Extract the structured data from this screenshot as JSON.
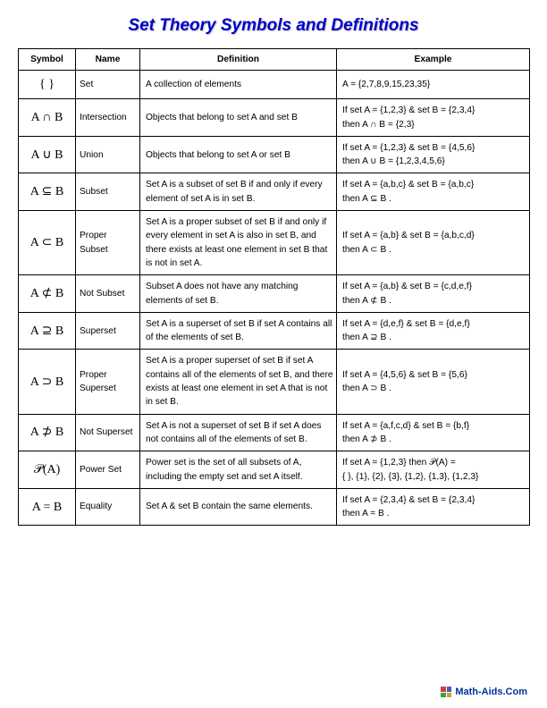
{
  "title": "Set Theory Symbols and Definitions",
  "columns": [
    "Symbol",
    "Name",
    "Definition",
    "Example"
  ],
  "rows": [
    {
      "symbol": "{ }",
      "name": "Set",
      "definition": "A collection of elements",
      "example": "A = {2,7,8,9,15,23,35}"
    },
    {
      "symbol": "A ∩ B",
      "name": "Intersection",
      "definition": "Objects that belong to set A and set B",
      "example": "If set A = {1,2,3}  & set B = {2,3,4}\nthen A ∩ B = {2,3}"
    },
    {
      "symbol": "A ∪ B",
      "name": "Union",
      "definition": "Objects that belong to set A or set B",
      "example": "If set A = {1,2,3}  & set B = {4,5,6}\nthen A ∪ B = {1,2,3,4,5,6}"
    },
    {
      "symbol": "A ⊆ B",
      "name": "Subset",
      "definition": "Set A is a subset of set B if and only if every element of set A is in set B.",
      "example": "If set A = {a,b,c}  & set B = {a,b,c}\nthen A ⊆ B ."
    },
    {
      "symbol": "A ⊂ B",
      "name": "Proper Subset",
      "definition": "Set A is a proper subset of set B if and only if every element in set A is also in set B, and there exists at least one element in set B that is not in set A.",
      "example": "If set A = {a,b}  & set B = {a,b,c,d}\nthen A ⊂ B ."
    },
    {
      "symbol": "A ⊄ B",
      "name": "Not Subset",
      "definition": "Subset A does not have any matching elements of set B.",
      "example": "If set A = {a,b}  & set B = {c,d,e,f}\nthen A ⊄ B ."
    },
    {
      "symbol": "A ⊇ B",
      "name": "Superset",
      "definition": "Set A is a superset of set B if set A contains all of the elements of set B.",
      "example": "If set A = {d,e,f}  & set B = {d,e,f}\nthen A ⊇ B ."
    },
    {
      "symbol": "A ⊃ B",
      "name": "Proper Superset",
      "definition": "Set A is a proper superset of set B if set A contains all of the elements of set B, and there exists at least one element in set A that is not in set B.",
      "example": "If set A = {4,5,6}  & set B = {5,6}\nthen A ⊃ B ."
    },
    {
      "symbol": "A ⊅ B",
      "name": "Not Superset",
      "definition": "Set A is not a superset of set B if set A does not contains all of the elements of set B.",
      "example": "If set A = {a,f,c,d}  & set B = {b,f}\nthen A ⊅ B ."
    },
    {
      "symbol": "𝒫(A)",
      "name": "Power Set",
      "definition": "Power set is the set of all subsets of A, including the empty set and set A itself.",
      "example": "If set A = {1,2,3}  then  𝒫(A) =\n{ }, {1}, {2}, {3}, {1,2}, {1,3}, {1,2,3}"
    },
    {
      "symbol": "A = B",
      "name": "Equality",
      "definition": "Set A & set B contain the same elements.",
      "example": "If set A = {2,3,4}  & set B = {2,3,4}\nthen A = B ."
    }
  ],
  "footer": {
    "text": "Math-Aids.Com",
    "logo_colors": [
      "#d04040",
      "#4060c0",
      "#40a040",
      "#d0a030"
    ]
  }
}
